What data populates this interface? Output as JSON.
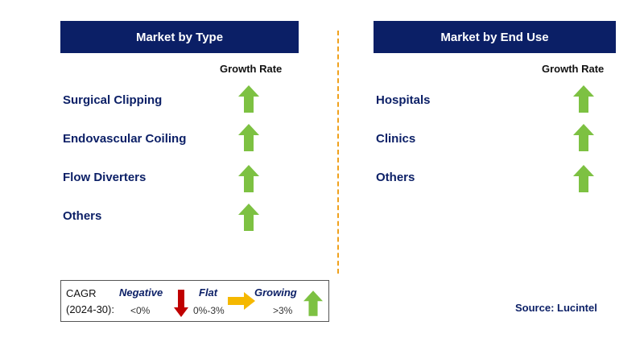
{
  "left_panel": {
    "title": "Market by Type",
    "growth_rate_label": "Growth Rate",
    "rows": [
      {
        "label": "Surgical Clipping",
        "trend": "growing"
      },
      {
        "label": "Endovascular Coiling",
        "trend": "growing"
      },
      {
        "label": "Flow Diverters",
        "trend": "growing"
      },
      {
        "label": "Others",
        "trend": "growing"
      }
    ]
  },
  "right_panel": {
    "title": "Market by End Use",
    "growth_rate_label": "Growth Rate",
    "rows": [
      {
        "label": "Hospitals",
        "trend": "growing"
      },
      {
        "label": "Clinics",
        "trend": "growing"
      },
      {
        "label": "Others",
        "trend": "growing"
      }
    ]
  },
  "legend": {
    "cagr_label": "CAGR",
    "period_label": "(2024-30):",
    "negative": {
      "label": "Negative",
      "range": "<0%"
    },
    "flat": {
      "label": "Flat",
      "range": "0%-3%"
    },
    "growing": {
      "label": "Growing",
      "range": ">3%"
    }
  },
  "source": "Source: Lucintel",
  "colors": {
    "header_bg": "#0b1f66",
    "growing_arrow": "#7dc142",
    "negative_arrow": "#c00000",
    "flat_arrow": "#f5b800",
    "divider": "#f0a11c"
  }
}
